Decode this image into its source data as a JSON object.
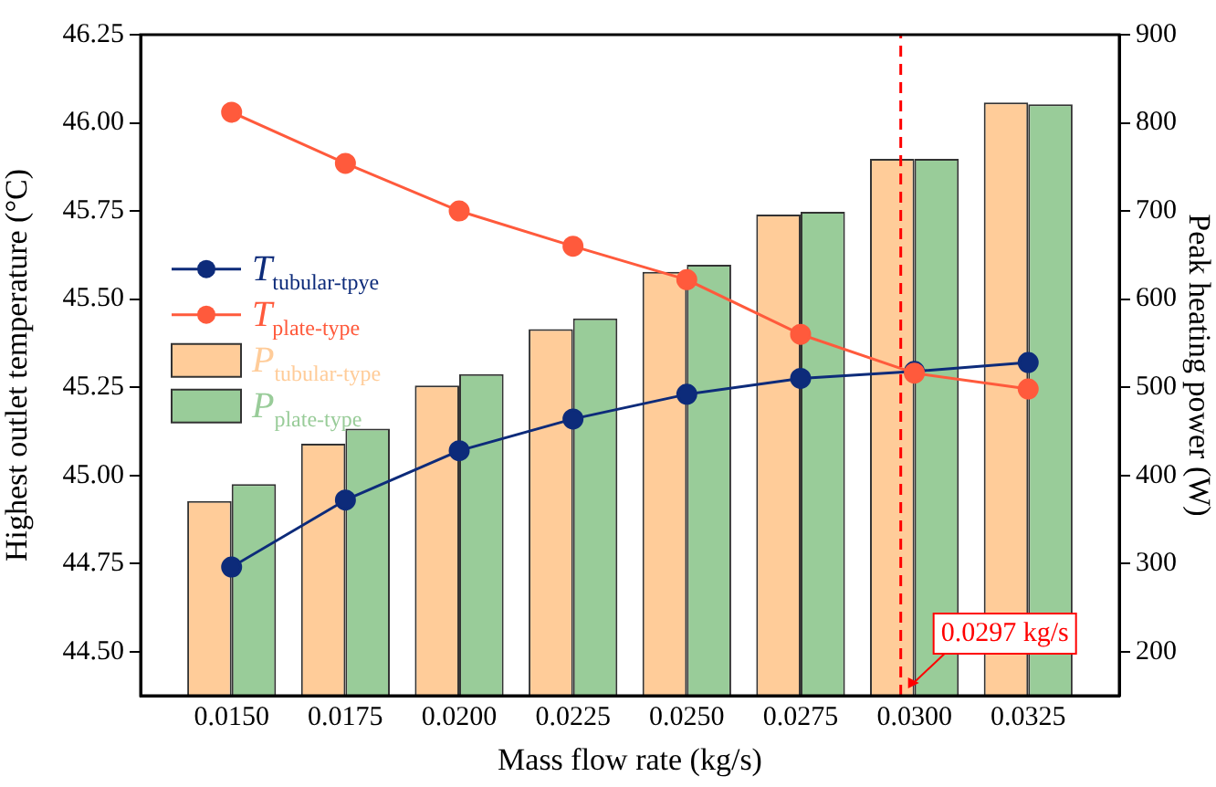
{
  "chart_data": {
    "type": "bar",
    "xlabel": "Mass flow rate (kg/s)",
    "ylabel": "Highest outlet temperature (°C)",
    "y2label": "Peak heating power (W)",
    "x": [
      0.015,
      0.0175,
      0.02,
      0.0225,
      0.025,
      0.0275,
      0.03,
      0.0325
    ],
    "xlim": [
      0.013,
      0.0345
    ],
    "xticks": [
      {
        "value": 0.015,
        "label": "0.0150"
      },
      {
        "value": 0.0175,
        "label": "0.0175"
      },
      {
        "value": 0.02,
        "label": "0.0200"
      },
      {
        "value": 0.0225,
        "label": "0.0225"
      },
      {
        "value": 0.025,
        "label": "0.0250"
      },
      {
        "value": 0.0275,
        "label": "0.0275"
      },
      {
        "value": 0.03,
        "label": "0.0300"
      },
      {
        "value": 0.0325,
        "label": "0.0325"
      }
    ],
    "ylim": [
      44.375,
      46.25
    ],
    "yticks": [
      {
        "value": 44.5,
        "label": "44.50"
      },
      {
        "value": 44.75,
        "label": "44.75"
      },
      {
        "value": 45,
        "label": "45.00"
      },
      {
        "value": 45.25,
        "label": "45.25"
      },
      {
        "value": 45.5,
        "label": "45.50"
      },
      {
        "value": 45.75,
        "label": "45.75"
      },
      {
        "value": 46,
        "label": "46.00"
      },
      {
        "value": 46.25,
        "label": "46.25"
      }
    ],
    "y2lim": [
      150,
      900
    ],
    "y2ticks": [
      200,
      300,
      400,
      500,
      600,
      700,
      800,
      900
    ],
    "series": [
      {
        "name": "T$_{tubular-tpye}$",
        "type": "line",
        "color": "#0d2b7a",
        "values": [
          44.74,
          44.93,
          45.07,
          45.16,
          45.23,
          45.275,
          45.295,
          45.32
        ]
      },
      {
        "name": "T$_{plate-type}$",
        "type": "line",
        "color": "#ff5a3c",
        "values": [
          46.03,
          45.885,
          45.75,
          45.65,
          45.555,
          45.4,
          45.29,
          45.245
        ]
      },
      {
        "name": "P$_{tubular-type}$",
        "axis": "y2",
        "color": "#ffcc99",
        "values": [
          371,
          436,
          502,
          566,
          631,
          696,
          759,
          823
        ]
      },
      {
        "name": "P$_{plate-type}$",
        "axis": "y2",
        "color": "#99cc99",
        "values": [
          390,
          453,
          515,
          578,
          639,
          699,
          759,
          821
        ]
      }
    ],
    "ref_lines": [
      {
        "axis": "x",
        "value": 0.0297,
        "label": "0.0297 kg/s",
        "color": "#ff0000",
        "line_style": "dashed"
      }
    ],
    "marker": "circle",
    "grid": false,
    "legend": "left"
  }
}
